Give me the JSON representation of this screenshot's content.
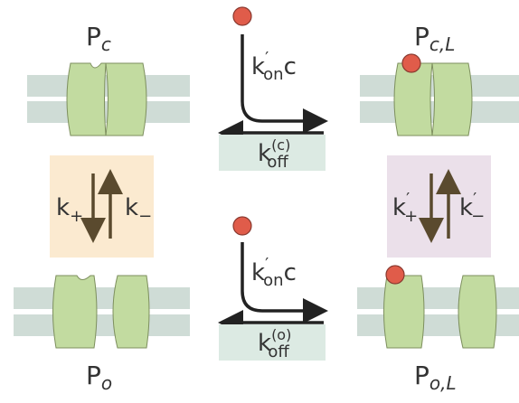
{
  "states": [
    {
      "main": "P",
      "sub": "c"
    },
    {
      "main": "P",
      "sub": "c,L"
    },
    {
      "main": "P",
      "sub": "o"
    },
    {
      "main": "P",
      "sub": "o,L"
    }
  ],
  "binding": {
    "closed_on": {
      "main": "k",
      "prime": "′",
      "sub": "on",
      "tail": "c"
    },
    "closed_off": {
      "main": "k",
      "sup": "(c)",
      "sub": "off"
    },
    "open_on": {
      "main": "k",
      "prime": "′",
      "sub": "on",
      "tail": "c"
    },
    "open_off": {
      "main": "k",
      "sup": "(o)",
      "sub": "off"
    }
  },
  "gating": {
    "unbound": {
      "plus": {
        "main": "k",
        "sub": "+"
      },
      "minus": {
        "main": "k",
        "sub": "−"
      }
    },
    "bound": {
      "plus": {
        "main": "k",
        "prime": "′",
        "sub": "+"
      },
      "minus": {
        "main": "k",
        "prime": "′",
        "sub": "−"
      }
    }
  }
}
